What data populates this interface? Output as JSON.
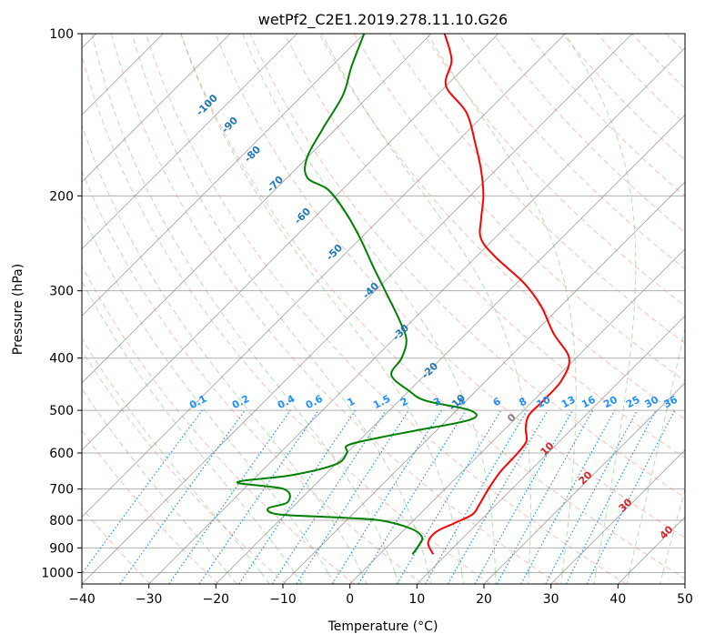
{
  "chart_data": {
    "type": "line",
    "title": "wetPf2_C2E1.2019.278.11.10.G26",
    "xlabel": "Temperature (°C)",
    "ylabel": "Pressure (hPa)",
    "xlim": [
      -40,
      50
    ],
    "ylim": [
      1050,
      100
    ],
    "y_scale": "log",
    "x_ticks": [
      -40,
      -30,
      -20,
      -10,
      0,
      10,
      20,
      30,
      40,
      50
    ],
    "y_ticks": [
      100,
      200,
      300,
      400,
      500,
      600,
      700,
      800,
      900,
      1000
    ],
    "grid": true,
    "isotherm_skew_degrees": 45,
    "colors": {
      "temperature": "#ff0000",
      "dewpoint": "#008000",
      "dry_adiabat": "#fa8072",
      "moist_adiabat": "#2ca02c",
      "mixing_ratio": "#1e90ff",
      "isotherm": "#808080",
      "grid": "#b0b0b0"
    },
    "series": [
      {
        "points": [
          {
            "p": 925,
            "t": 8.0
          },
          {
            "p": 880,
            "t": 5.5
          },
          {
            "p": 840,
            "t": 5.1
          },
          {
            "p": 810,
            "t": 6.5
          },
          {
            "p": 780,
            "t": 7.9
          },
          {
            "p": 750,
            "t": 7.5
          },
          {
            "p": 700,
            "t": 6.5
          },
          {
            "p": 650,
            "t": 5.7
          },
          {
            "p": 600,
            "t": 5.5
          },
          {
            "p": 570,
            "t": 5.0
          },
          {
            "p": 540,
            "t": 3.0
          },
          {
            "p": 510,
            "t": 1.5
          },
          {
            "p": 480,
            "t": 1.5
          },
          {
            "p": 440,
            "t": 1.2
          },
          {
            "p": 400,
            "t": -1.0
          },
          {
            "p": 360,
            "t": -7.0
          },
          {
            "p": 320,
            "t": -13.0
          },
          {
            "p": 290,
            "t": -19.0
          },
          {
            "p": 260,
            "t": -27.0
          },
          {
            "p": 240,
            "t": -32.0
          },
          {
            "p": 220,
            "t": -35.0
          },
          {
            "p": 200,
            "t": -38.0
          },
          {
            "p": 180,
            "t": -42.0
          },
          {
            "p": 160,
            "t": -47.0
          },
          {
            "p": 140,
            "t": -53.0
          },
          {
            "p": 125,
            "t": -60.0
          },
          {
            "p": 112,
            "t": -63.0
          },
          {
            "p": 100,
            "t": -68.0
          }
        ]
      },
      {
        "points": [
          {
            "p": 925,
            "t": 4.9
          },
          {
            "p": 890,
            "t": 4.5
          },
          {
            "p": 860,
            "t": 3.8
          },
          {
            "p": 830,
            "t": 1.0
          },
          {
            "p": 800,
            "t": -5.0
          },
          {
            "p": 790,
            "t": -12.0
          },
          {
            "p": 780,
            "t": -21.0
          },
          {
            "p": 760,
            "t": -23.5
          },
          {
            "p": 740,
            "t": -21.5
          },
          {
            "p": 700,
            "t": -24.0
          },
          {
            "p": 680,
            "t": -32.0
          },
          {
            "p": 660,
            "t": -25.0
          },
          {
            "p": 630,
            "t": -20.0
          },
          {
            "p": 600,
            "t": -20.0
          },
          {
            "p": 580,
            "t": -21.0
          },
          {
            "p": 560,
            "t": -17.0
          },
          {
            "p": 545,
            "t": -13.0
          },
          {
            "p": 520,
            "t": -6.5
          },
          {
            "p": 500,
            "t": -8.0
          },
          {
            "p": 480,
            "t": -16.0
          },
          {
            "p": 460,
            "t": -20.0
          },
          {
            "p": 430,
            "t": -25.0
          },
          {
            "p": 400,
            "t": -26.0
          },
          {
            "p": 370,
            "t": -28.0
          },
          {
            "p": 340,
            "t": -32.0
          },
          {
            "p": 300,
            "t": -38.5
          },
          {
            "p": 270,
            "t": -44.0
          },
          {
            "p": 240,
            "t": -50.0
          },
          {
            "p": 215,
            "t": -56.0
          },
          {
            "p": 195,
            "t": -62.0
          },
          {
            "p": 185,
            "t": -67.0
          },
          {
            "p": 170,
            "t": -70.0
          },
          {
            "p": 150,
            "t": -72.0
          },
          {
            "p": 130,
            "t": -74.0
          },
          {
            "p": 115,
            "t": -77.0
          },
          {
            "p": 100,
            "t": -80.0
          }
        ]
      }
    ],
    "dry_adiabat_labels": [
      -100,
      -90,
      -80,
      -70,
      -60,
      -50,
      -40,
      -30,
      -20,
      -10
    ],
    "mixing_ratio_labels": [
      "0.1",
      "0.2",
      "0.4",
      "0.6",
      "1",
      "1.5",
      "2",
      "3",
      "4",
      "6",
      "8",
      "10",
      "13",
      "16",
      "20",
      "25",
      "30",
      "36"
    ],
    "moist_adiabat_labels": [
      "0",
      "10",
      "20",
      "30",
      "40"
    ]
  }
}
